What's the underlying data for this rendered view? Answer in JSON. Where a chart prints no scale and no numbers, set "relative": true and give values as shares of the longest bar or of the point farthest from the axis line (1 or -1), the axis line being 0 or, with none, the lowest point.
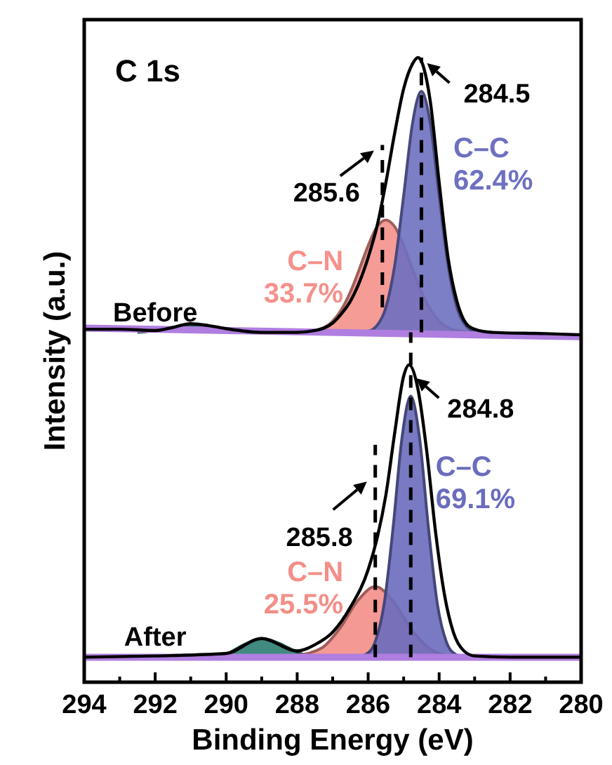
{
  "chart_data": {
    "type": "area",
    "relative": true,
    "title": "C 1s",
    "xlabel": "Binding Energy (eV)",
    "ylabel": "Intensity (a.u.)",
    "tick_labels": "x",
    "grid": false,
    "xlim": [
      294,
      280
    ],
    "xticks": [
      294,
      {
        "value": 293,
        "label": null
      },
      292,
      {
        "value": 291,
        "label": null
      },
      290,
      {
        "value": 289,
        "label": null
      },
      288,
      {
        "value": 287,
        "label": null
      },
      286,
      {
        "value": 285,
        "label": null
      },
      284,
      {
        "value": 283,
        "label": null
      },
      282,
      {
        "value": 281,
        "label": null
      },
      280
    ],
    "series": [
      {
        "color": "#2a7a70",
        "x": [
          292.5,
          292,
          291.5,
          291,
          290.5,
          290,
          289.5
        ],
        "values": [
          0.56,
          0.563,
          0.567,
          0.572,
          0.57,
          0.565,
          0.56
        ]
      },
      {
        "name": "C–N 33.7%",
        "color": "#f4918b",
        "x": [
          288,
          287.5,
          287,
          286.75,
          286.5,
          286.25,
          286,
          285.75,
          285.5,
          285.25,
          285,
          284.75,
          284.5,
          284.25,
          284,
          283.5,
          283
        ],
        "values": [
          0.56,
          0.563,
          0.578,
          0.597,
          0.625,
          0.661,
          0.699,
          0.729,
          0.74,
          0.729,
          0.699,
          0.661,
          0.625,
          0.597,
          0.578,
          0.563,
          0.56
        ]
      },
      {
        "name": "C–C 62.4%",
        "color": "#6e70c0",
        "x": [
          286.5,
          286,
          285.75,
          285.5,
          285.25,
          285,
          284.75,
          284.5,
          284.25,
          284,
          283.75,
          283.5,
          283.25,
          283,
          282.5
        ],
        "values": [
          0.56,
          0.562,
          0.571,
          0.6,
          0.668,
          0.779,
          0.895,
          0.946,
          0.895,
          0.779,
          0.668,
          0.6,
          0.571,
          0.562,
          0.56
        ]
      },
      {
        "type": "line",
        "color": "#b07ee0",
        "x": [
          294,
          280
        ],
        "values": [
          0.567,
          0.553
        ]
      },
      {
        "type": "line",
        "color": "#000000",
        "x": [
          294,
          293,
          292,
          291.5,
          291,
          290.5,
          290,
          289,
          288,
          287.5,
          287,
          286.75,
          286.5,
          286.25,
          286,
          285.75,
          285.5,
          285.25,
          285,
          284.75,
          284.6,
          284.25,
          284,
          283.75,
          283.5,
          283.25,
          283,
          282.5,
          281,
          280
        ],
        "values": [
          0.565,
          0.565,
          0.563,
          0.568,
          0.574,
          0.571,
          0.566,
          0.56,
          0.56,
          0.563,
          0.575,
          0.59,
          0.61,
          0.64,
          0.68,
          0.73,
          0.8,
          0.88,
          0.95,
          0.99,
          1,
          0.93,
          0.8,
          0.68,
          0.61,
          0.575,
          0.565,
          0.56,
          0.558,
          0.556
        ]
      },
      {
        "color": "#2b7d72",
        "x": [
          290.5,
          290,
          289.5,
          289,
          288.5,
          288,
          287.5
        ],
        "values": [
          0.04,
          0.045,
          0.06,
          0.07,
          0.062,
          0.048,
          0.04
        ]
      },
      {
        "name": "C–N 25.5%",
        "color": "#f38e88",
        "x": [
          288,
          287.3,
          286.8,
          286.3,
          285.8,
          285.3,
          284.8,
          284.3,
          283.8,
          283.3
        ],
        "values": [
          0.043,
          0.055,
          0.086,
          0.13,
          0.153,
          0.13,
          0.086,
          0.055,
          0.043,
          0.04
        ]
      },
      {
        "name": "C–C 69.1%",
        "color": "#6a6cbd",
        "x": [
          286.3,
          286.05,
          285.8,
          285.55,
          285.3,
          285.05,
          284.8,
          284.55,
          284.3,
          284.05,
          283.8,
          283.55,
          283.3
        ],
        "values": [
          0.04,
          0.045,
          0.065,
          0.125,
          0.246,
          0.39,
          0.458,
          0.39,
          0.246,
          0.125,
          0.065,
          0.045,
          0.04
        ]
      },
      {
        "type": "line",
        "color": "#b07ee0",
        "x": [
          294,
          280
        ],
        "values": [
          0.04,
          0.04
        ]
      },
      {
        "type": "line",
        "color": "#000000",
        "x": [
          294,
          292,
          290,
          289,
          288,
          287.5,
          287,
          286.5,
          286,
          285.75,
          285.5,
          285.25,
          285,
          284.85,
          284.6,
          284.35,
          284.1,
          283.85,
          283.6,
          283.3,
          283,
          282,
          280
        ],
        "values": [
          0.04,
          0.042,
          0.046,
          0.07,
          0.05,
          0.06,
          0.08,
          0.12,
          0.18,
          0.23,
          0.3,
          0.4,
          0.49,
          0.508,
          0.47,
          0.37,
          0.24,
          0.14,
          0.08,
          0.05,
          0.042,
          0.04,
          0.04
        ]
      },
      {
        "type": "line",
        "line_style": "dashed",
        "color": "#000000",
        "x": [
          284.5,
          284.5
        ],
        "values": [
          0.56,
          1
        ]
      },
      {
        "type": "line",
        "line_style": "dashed",
        "color": "#000000",
        "x": [
          285.6,
          285.6
        ],
        "values": [
          0.6,
          0.86
        ]
      },
      {
        "type": "line",
        "line_style": "dashed",
        "color": "#000000",
        "x": [
          284.8,
          284.8
        ],
        "values": [
          0.04,
          0.56
        ]
      },
      {
        "type": "line",
        "line_style": "dashed",
        "color": "#000000",
        "x": [
          285.8,
          285.8
        ],
        "values": [
          0.04,
          0.38
        ]
      }
    ],
    "annotations": [
      {
        "text": "Before",
        "x": 292,
        "y": 0.56
      },
      {
        "text": "After",
        "x": 292,
        "y": 0.04
      },
      {
        "text": "284.5",
        "x": 284.5,
        "y": 1
      },
      {
        "text": "285.6",
        "x": 285.6,
        "y": 0.86
      },
      {
        "text": "284.8",
        "x": 284.8,
        "y": 0.5
      },
      {
        "text": "285.8",
        "x": 285.8,
        "y": 0.33
      }
    ]
  }
}
